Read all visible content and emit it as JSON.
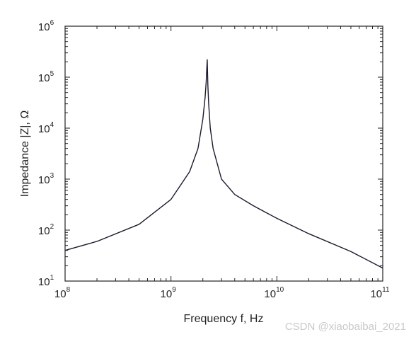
{
  "chart_data": {
    "type": "line",
    "xscale": "log",
    "yscale": "log",
    "xlim": [
      100000000,
      100000000000
    ],
    "ylim": [
      10,
      1000000
    ],
    "xticks": [
      {
        "base": "10",
        "exp": "8",
        "value": 100000000
      },
      {
        "base": "10",
        "exp": "9",
        "value": 1000000000
      },
      {
        "base": "10",
        "exp": "10",
        "value": 10000000000
      },
      {
        "base": "10",
        "exp": "11",
        "value": 100000000000
      }
    ],
    "yticks": [
      {
        "base": "10",
        "exp": "1",
        "value": 10
      },
      {
        "base": "10",
        "exp": "2",
        "value": 100
      },
      {
        "base": "10",
        "exp": "3",
        "value": 1000
      },
      {
        "base": "10",
        "exp": "4",
        "value": 10000
      },
      {
        "base": "10",
        "exp": "5",
        "value": 100000
      },
      {
        "base": "10",
        "exp": "6",
        "value": 1000000
      }
    ],
    "xlabel": "Frequency f, Hz",
    "ylabel": "Impedance |Z|, Ω",
    "grid": false,
    "line_color": "#1a1a2e",
    "series": [
      {
        "x": [
          100000000,
          200000000,
          500000000,
          1000000000,
          1500000000,
          1800000000,
          2000000000,
          2100000000,
          2150000000,
          2180000000,
          2200000000,
          2230000000,
          2270000000,
          2350000000,
          2500000000,
          3000000000,
          4000000000,
          6000000000,
          10000000000,
          20000000000,
          50000000000,
          100000000000
        ],
        "y": [
          40,
          60,
          130,
          400,
          1400,
          4000,
          15000,
          40000,
          80000,
          150000,
          220000,
          70000,
          30000,
          10000,
          4000,
          1000,
          500,
          300,
          170,
          85,
          38,
          18
        ]
      }
    ]
  },
  "watermark": "CSDN @xiaobaibai_2021"
}
